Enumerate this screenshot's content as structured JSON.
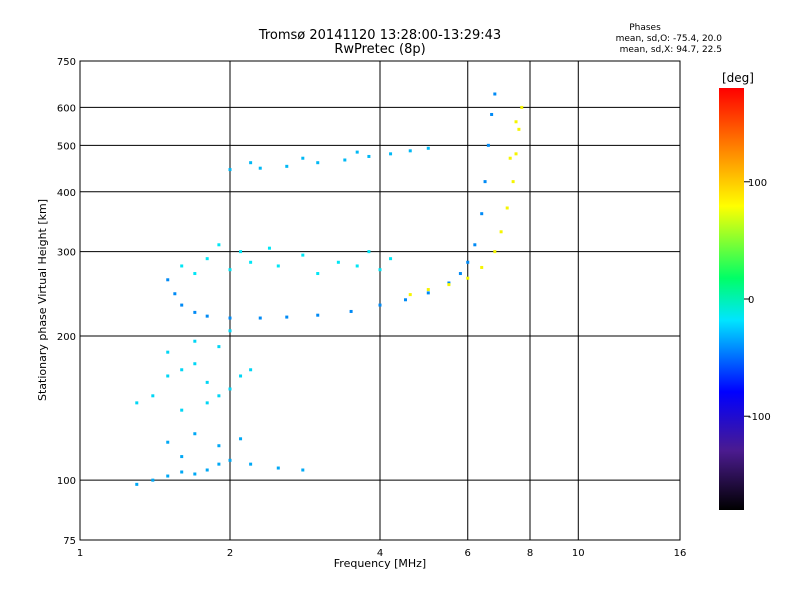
{
  "chart_data": {
    "type": "scatter",
    "title": "Tromsø 20141120 13:28:00-13:29:43",
    "subtitle": "RwPretec (8p)",
    "xlabel": "Frequency [MHz]",
    "ylabel": "Stationary phase Virtual Height [km]",
    "x_scale": "log2",
    "y_scale": "log",
    "xlim": [
      1,
      16
    ],
    "ylim": [
      75,
      750
    ],
    "x_ticks": [
      1,
      2,
      4,
      6,
      8,
      10,
      16
    ],
    "x_tick_labels": [
      "1",
      "2",
      "4",
      "6",
      "8",
      "10",
      "16"
    ],
    "y_ticks": [
      75,
      100,
      200,
      300,
      400,
      500,
      600,
      750
    ],
    "y_tick_labels": [
      "75",
      "100",
      "200",
      "300",
      "400",
      "500",
      "600",
      "750"
    ],
    "grid": true,
    "stats": {
      "header": "Phases",
      "line_o": "mean, sd,O: -75.4, 20.0",
      "line_x": "mean, sd,X:  94.7, 22.5"
    },
    "colorbar": {
      "label": "[deg]",
      "range": [
        -180,
        180
      ],
      "ticks": [
        100,
        0,
        -100
      ],
      "tick_labels": [
        "100",
        "0",
        "-100"
      ]
    },
    "series": [
      {
        "trace": "lower-layer-band-a",
        "phase_deg": -85,
        "points": [
          [
            1.4,
            100
          ],
          [
            1.5,
            102
          ],
          [
            1.6,
            104
          ],
          [
            1.7,
            103
          ],
          [
            1.8,
            105
          ],
          [
            1.9,
            108
          ],
          [
            2.0,
            110
          ],
          [
            2.2,
            108
          ],
          [
            2.5,
            106
          ],
          [
            2.8,
            105
          ],
          [
            1.5,
            120
          ],
          [
            1.7,
            125
          ],
          [
            1.9,
            118
          ],
          [
            2.1,
            122
          ],
          [
            1.3,
            98
          ],
          [
            1.6,
            112
          ]
        ]
      },
      {
        "trace": "mid-layer-scatter",
        "phase_deg": -70,
        "points": [
          [
            1.3,
            145
          ],
          [
            1.4,
            150
          ],
          [
            1.5,
            165
          ],
          [
            1.6,
            170
          ],
          [
            1.7,
            175
          ],
          [
            1.8,
            160
          ],
          [
            1.9,
            150
          ],
          [
            2.0,
            155
          ],
          [
            2.1,
            165
          ],
          [
            1.5,
            185
          ],
          [
            1.7,
            195
          ],
          [
            1.9,
            190
          ],
          [
            2.0,
            205
          ],
          [
            1.6,
            140
          ],
          [
            1.8,
            145
          ],
          [
            2.2,
            170
          ]
        ]
      },
      {
        "trace": "f-layer-o-mode",
        "phase_deg": -95,
        "points": [
          [
            1.5,
            262
          ],
          [
            1.55,
            245
          ],
          [
            1.6,
            232
          ],
          [
            1.7,
            224
          ],
          [
            1.8,
            220
          ],
          [
            2.0,
            218
          ],
          [
            2.3,
            218
          ],
          [
            2.6,
            219
          ],
          [
            3.0,
            221
          ],
          [
            3.5,
            225
          ],
          [
            4.0,
            232
          ],
          [
            4.5,
            238
          ],
          [
            5.0,
            246
          ],
          [
            5.5,
            258
          ],
          [
            5.8,
            270
          ],
          [
            6.0,
            285
          ],
          [
            6.2,
            310
          ],
          [
            6.4,
            360
          ],
          [
            6.5,
            420
          ],
          [
            6.6,
            500
          ],
          [
            6.7,
            580
          ],
          [
            6.8,
            640
          ]
        ]
      },
      {
        "trace": "f-layer-spread",
        "phase_deg": -65,
        "points": [
          [
            1.6,
            280
          ],
          [
            1.8,
            290
          ],
          [
            2.0,
            275
          ],
          [
            2.2,
            285
          ],
          [
            2.5,
            280
          ],
          [
            2.8,
            295
          ],
          [
            3.0,
            270
          ],
          [
            3.3,
            285
          ],
          [
            3.6,
            280
          ],
          [
            4.0,
            275
          ],
          [
            4.2,
            290
          ],
          [
            2.1,
            300
          ],
          [
            2.4,
            305
          ],
          [
            1.9,
            310
          ],
          [
            1.7,
            270
          ],
          [
            3.8,
            300
          ]
        ]
      },
      {
        "trace": "f-layer-x-mode",
        "phase_deg": 100,
        "points": [
          [
            4.6,
            244
          ],
          [
            5.0,
            250
          ],
          [
            5.5,
            256
          ],
          [
            6.0,
            264
          ],
          [
            6.4,
            278
          ],
          [
            6.8,
            300
          ],
          [
            7.0,
            330
          ],
          [
            7.2,
            370
          ],
          [
            7.4,
            420
          ],
          [
            7.5,
            480
          ],
          [
            7.6,
            540
          ],
          [
            7.7,
            600
          ],
          [
            7.5,
            560
          ],
          [
            7.3,
            470
          ]
        ]
      },
      {
        "trace": "upper-echo",
        "phase_deg": -80,
        "points": [
          [
            2.0,
            445
          ],
          [
            2.3,
            448
          ],
          [
            2.6,
            452
          ],
          [
            3.0,
            460
          ],
          [
            3.4,
            466
          ],
          [
            3.8,
            474
          ],
          [
            4.2,
            480
          ],
          [
            4.6,
            487
          ],
          [
            5.0,
            493
          ],
          [
            2.2,
            460
          ],
          [
            2.8,
            470
          ],
          [
            3.6,
            484
          ]
        ]
      }
    ]
  }
}
